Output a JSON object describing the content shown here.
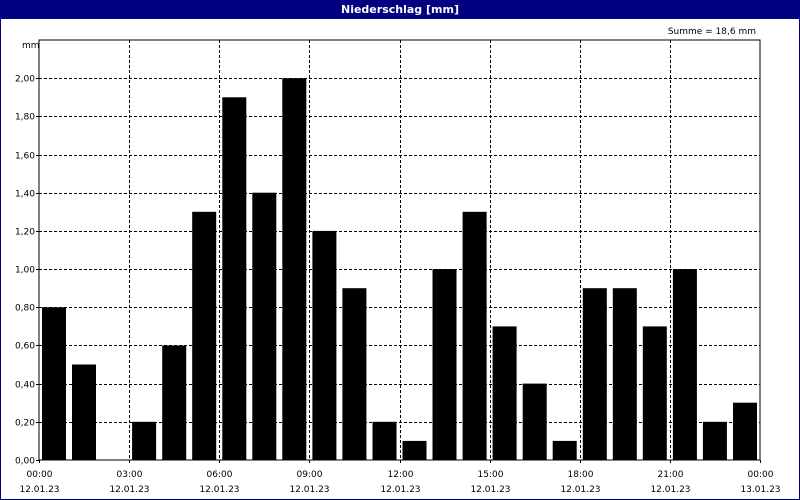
{
  "window": {
    "title": "Niederschlag [mm]"
  },
  "chart_data": {
    "type": "bar",
    "title": "Niederschlag [mm]",
    "ylabel": "mm",
    "annotation": "Summe = 18,6 mm",
    "ylim": [
      0,
      2.2
    ],
    "yticks": [
      "0,00",
      "0,20",
      "0,40",
      "0,60",
      "0,80",
      "1,00",
      "1,20",
      "1,40",
      "1,60",
      "1,80",
      "2,00"
    ],
    "xticks": [
      {
        "time": "00:00",
        "date": "12.01.23"
      },
      {
        "time": "03:00",
        "date": "12.01.23"
      },
      {
        "time": "06:00",
        "date": "12.01.23"
      },
      {
        "time": "09:00",
        "date": "12.01.23"
      },
      {
        "time": "12:00",
        "date": "12.01.23"
      },
      {
        "time": "15:00",
        "date": "12.01.23"
      },
      {
        "time": "18:00",
        "date": "12.01.23"
      },
      {
        "time": "21:00",
        "date": "12.01.23"
      },
      {
        "time": "00:00",
        "date": "13.01.23"
      }
    ],
    "categories": [
      "00:00",
      "01:00",
      "02:00",
      "03:00",
      "04:00",
      "05:00",
      "06:00",
      "07:00",
      "08:00",
      "09:00",
      "10:00",
      "11:00",
      "12:00",
      "13:00",
      "14:00",
      "15:00",
      "16:00",
      "17:00",
      "18:00",
      "19:00",
      "20:00",
      "21:00",
      "22:00",
      "23:00"
    ],
    "values": [
      0.8,
      0.5,
      0.0,
      0.2,
      0.6,
      1.3,
      1.9,
      1.4,
      2.0,
      1.2,
      0.9,
      0.2,
      0.1,
      1.0,
      1.3,
      0.7,
      0.4,
      0.1,
      0.9,
      0.9,
      0.7,
      1.0,
      0.2,
      0.3
    ],
    "grid": true,
    "colors": {
      "bar": "#000000",
      "titlebar": "#000080",
      "grid": "#000000"
    }
  }
}
